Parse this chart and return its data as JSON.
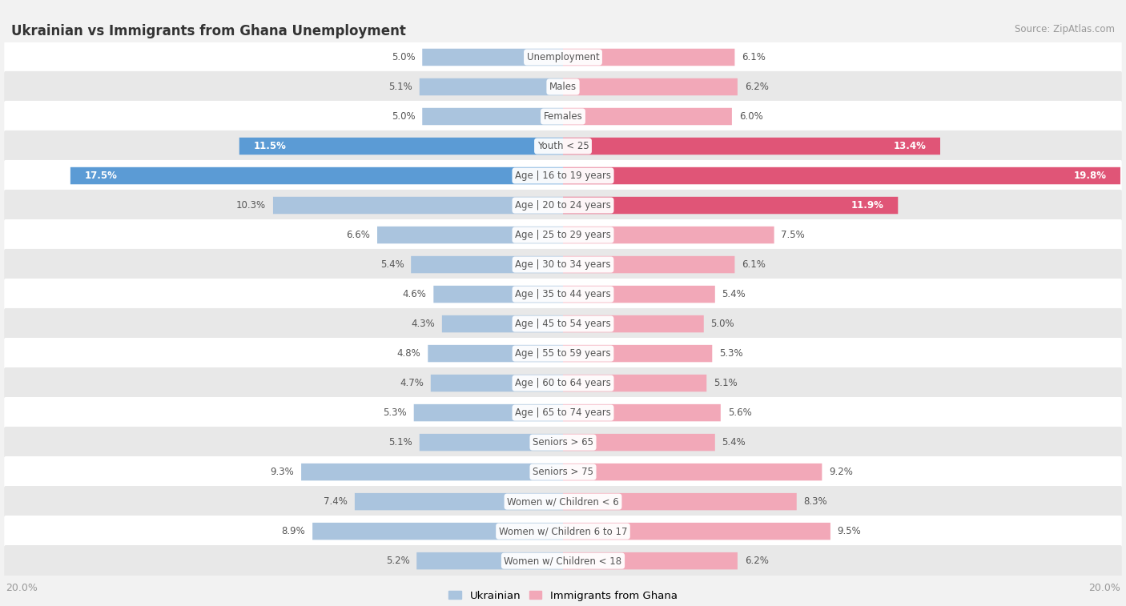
{
  "title": "Ukrainian vs Immigrants from Ghana Unemployment",
  "source": "Source: ZipAtlas.com",
  "categories": [
    "Unemployment",
    "Males",
    "Females",
    "Youth < 25",
    "Age | 16 to 19 years",
    "Age | 20 to 24 years",
    "Age | 25 to 29 years",
    "Age | 30 to 34 years",
    "Age | 35 to 44 years",
    "Age | 45 to 54 years",
    "Age | 55 to 59 years",
    "Age | 60 to 64 years",
    "Age | 65 to 74 years",
    "Seniors > 65",
    "Seniors > 75",
    "Women w/ Children < 6",
    "Women w/ Children 6 to 17",
    "Women w/ Children < 18"
  ],
  "ukrainian": [
    5.0,
    5.1,
    5.0,
    11.5,
    17.5,
    10.3,
    6.6,
    5.4,
    4.6,
    4.3,
    4.8,
    4.7,
    5.3,
    5.1,
    9.3,
    7.4,
    8.9,
    5.2
  ],
  "ghana": [
    6.1,
    6.2,
    6.0,
    13.4,
    19.8,
    11.9,
    7.5,
    6.1,
    5.4,
    5.0,
    5.3,
    5.1,
    5.6,
    5.4,
    9.2,
    8.3,
    9.5,
    6.2
  ],
  "ukrainian_color_normal": "#aac4de",
  "ghana_color_normal": "#f2a8b8",
  "ukrainian_color_highlight": "#5b9bd5",
  "ghana_color_highlight": "#e05577",
  "background_color": "#f2f2f2",
  "row_bg_odd": "#ffffff",
  "row_bg_even": "#e8e8e8",
  "label_color": "#555555",
  "value_color": "#555555",
  "highlight_text_color": "#ffffff",
  "axis_label_color": "#999999",
  "max_val": 20.0,
  "legend_ukrainian": "Ukrainian",
  "legend_ghana": "Immigrants from Ghana",
  "highlight_threshold": 11.0
}
